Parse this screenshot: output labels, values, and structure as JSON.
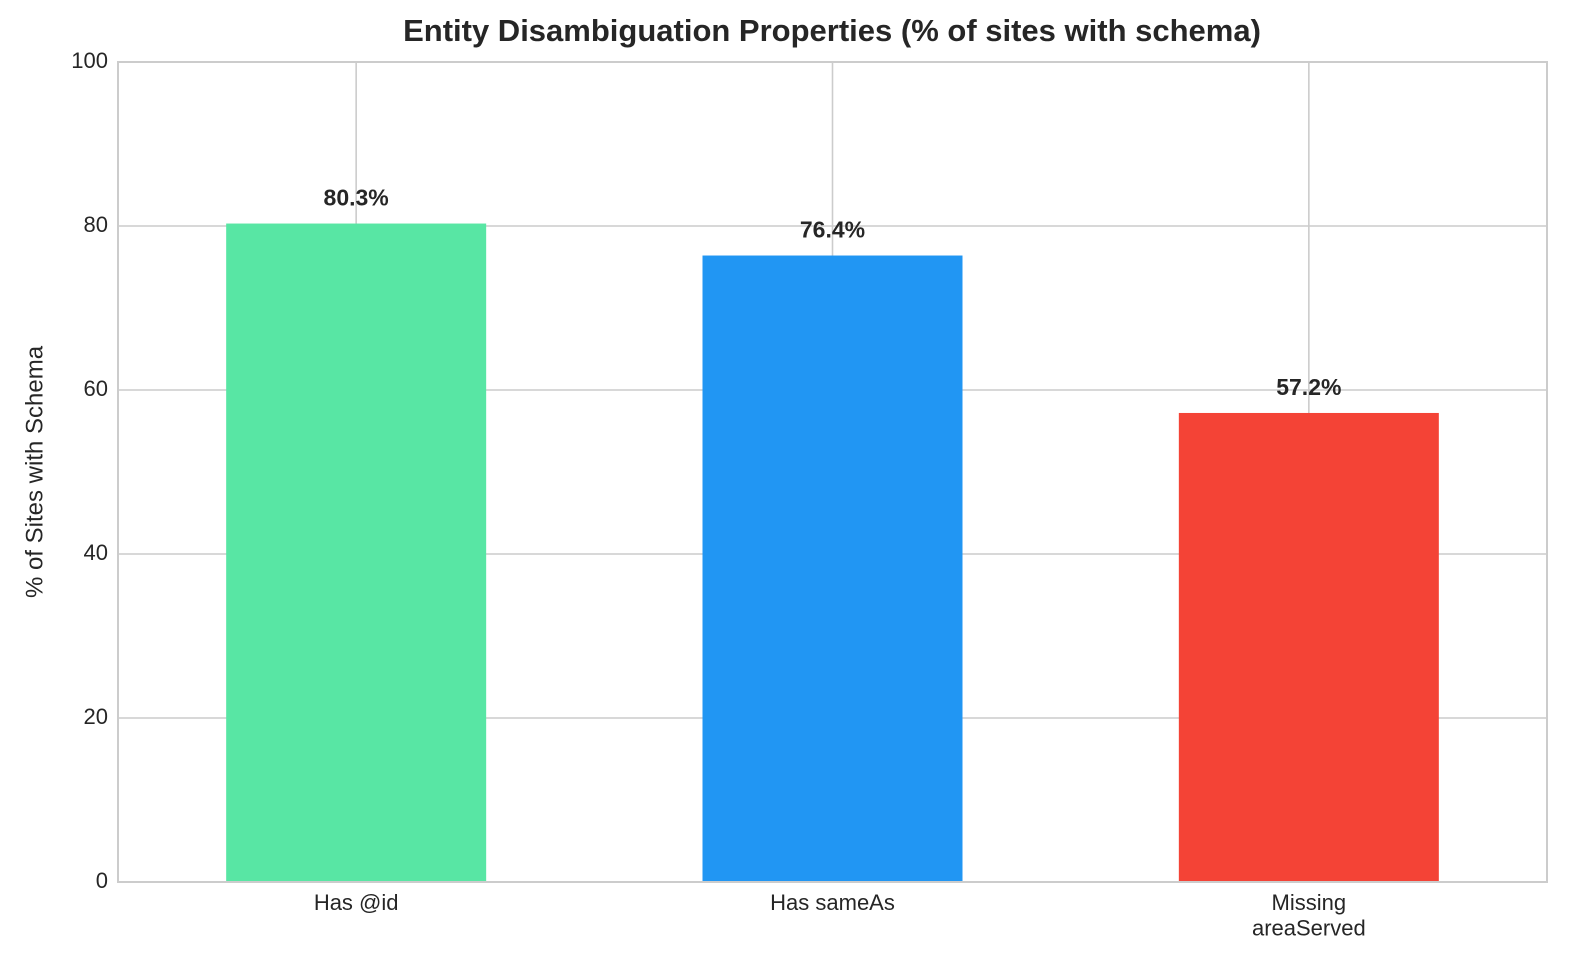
{
  "chart_data": {
    "type": "bar",
    "title": "Entity Disambiguation Properties (% of sites with schema)",
    "ylabel": "% of Sites with Schema",
    "categories": [
      "Has @id",
      "Has sameAs",
      "Missing\nareaServed"
    ],
    "values": [
      80.3,
      76.4,
      57.2
    ],
    "value_labels": [
      "80.3%",
      "76.4%",
      "57.2%"
    ],
    "colors": [
      "#58e6a4",
      "#2196f3",
      "#f44336"
    ],
    "ylim": [
      0,
      100
    ],
    "yticks": [
      0,
      20,
      40,
      60,
      80,
      100
    ],
    "grid": true
  }
}
